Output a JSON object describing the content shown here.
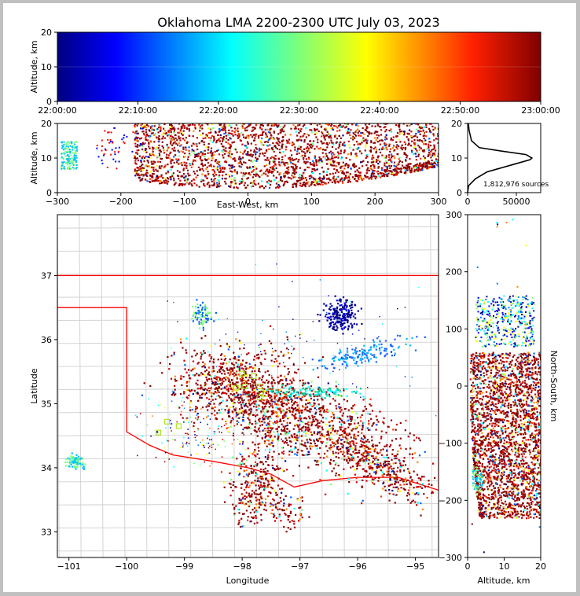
{
  "title": "Oklahoma LMA 2200-2300 UTC July 03, 2023",
  "colors": {
    "state_border": "#ff0000",
    "county_lines": "#c8c8c8",
    "colormap": [
      "#000080",
      "#0000ff",
      "#00ffff",
      "#ffff00",
      "#ff0000",
      "#800000"
    ]
  },
  "chart_data": [
    {
      "id": "time-altitude",
      "type": "scatter",
      "xlabel": "",
      "ylabel": "Altitude, km",
      "xticks": [
        "22:00:00",
        "22:10:00",
        "22:20:00",
        "22:30:00",
        "22:40:00",
        "22:50:00",
        "23:00:00"
      ],
      "yticks": [
        "0",
        "10",
        "20"
      ],
      "ylim": [
        0,
        20
      ],
      "color_by": "time"
    },
    {
      "id": "ew-altitude",
      "type": "scatter",
      "xlabel": "East-West, km",
      "ylabel": "Altitude, km",
      "xticks": [
        "−300",
        "−200",
        "−100",
        "0",
        "100",
        "200",
        "300"
      ],
      "yticks": [
        "0",
        "10",
        "20"
      ],
      "xlim": [
        -300,
        300
      ],
      "ylim": [
        0,
        20
      ]
    },
    {
      "id": "altitude-histogram",
      "type": "line",
      "xticks": [
        "0",
        "50000"
      ],
      "yticks": [
        "0",
        "10",
        "20"
      ],
      "ylim": [
        0,
        20
      ],
      "annotation": "1,812,976 sources",
      "x": [
        0,
        1000,
        8000,
        20000,
        45000,
        64000,
        66000,
        60000,
        35000,
        12000,
        4000,
        1500,
        800
      ],
      "y": [
        0,
        2,
        4,
        6,
        8,
        9.5,
        10,
        11,
        12,
        13,
        15,
        18,
        20
      ]
    },
    {
      "id": "plan-view",
      "type": "scatter",
      "xlabel": "Longitude",
      "ylabel": "Latitude",
      "xticks": [
        "−101",
        "−100",
        "−99",
        "−98",
        "−97",
        "−96",
        "−95"
      ],
      "yticks": [
        "33",
        "34",
        "35",
        "36",
        "37"
      ],
      "xlim": [
        -101.2,
        -94.6
      ],
      "ylim": [
        32.6,
        37.95
      ]
    },
    {
      "id": "ns-altitude",
      "type": "scatter",
      "xlabel": "Altitude, km",
      "ylabel": "North-South, km",
      "xticks": [
        "0",
        "10",
        "20"
      ],
      "yticks": [
        "−300",
        "−200",
        "−100",
        "0",
        "100",
        "200",
        "300"
      ],
      "xlim": [
        0,
        20
      ],
      "ylim": [
        -300,
        300
      ]
    }
  ]
}
